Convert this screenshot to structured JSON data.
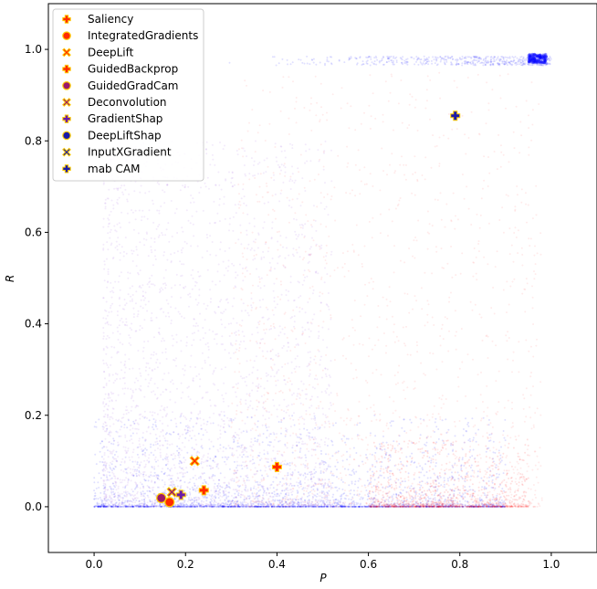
{
  "chart_data": {
    "type": "scatter",
    "title": "",
    "xlabel": "P",
    "ylabel": "R",
    "xlim": [
      -0.1,
      1.1
    ],
    "ylim": [
      -0.1,
      1.1
    ],
    "xticks": [
      0.0,
      0.2,
      0.4,
      0.6,
      0.8,
      1.0
    ],
    "xtick_labels": [
      "0.0",
      "0.2",
      "0.4",
      "0.6",
      "0.8",
      "1.0"
    ],
    "yticks": [
      0.0,
      0.2,
      0.4,
      0.6,
      0.8,
      1.0
    ],
    "ytick_labels": [
      "0.0",
      "0.2",
      "0.4",
      "0.6",
      "0.8",
      "1.0"
    ],
    "grid": false,
    "legend_position": "upper-left",
    "colors": {
      "blue_cloud": "#0000ff",
      "red_cloud": "#ff0000",
      "purple_cloud": "#7a1fd0",
      "legend_fill_red": "#ff2a00",
      "legend_fill_blue": "#1a1aa8",
      "legend_edge_yellow": "#ffcc00",
      "legend_edge_red": "#ff0000"
    },
    "series": [
      {
        "name": "Saliency",
        "marker": "plus",
        "fill": "#ff2a00",
        "edge": "#ffcc00",
        "x": 0.4,
        "y": 0.087
      },
      {
        "name": "IntegratedGradients",
        "marker": "circle",
        "fill": "#ff2a00",
        "edge": "#ffcc00",
        "x": 0.165,
        "y": 0.01
      },
      {
        "name": "DeepLift",
        "marker": "x",
        "fill": "#ff2a00",
        "edge": "#ffcc00",
        "x": 0.22,
        "y": 0.1
      },
      {
        "name": "GuidedBackprop",
        "marker": "plus",
        "fill": "#ff2a00",
        "edge": "#ffcc00",
        "x": 0.24,
        "y": 0.036
      },
      {
        "name": "GuidedGradCam",
        "marker": "circle",
        "fill": "#9a1a6a",
        "edge": "#ffcc00",
        "x": 0.147,
        "y": 0.019
      },
      {
        "name": "Deconvolution",
        "marker": "x",
        "fill": "#9a1a6a",
        "edge": "#ffcc00",
        "x": 0.17,
        "y": 0.032
      },
      {
        "name": "GradientShap",
        "marker": "plus",
        "fill": "#6a1aa8",
        "edge": "#ffcc00",
        "x": 0.19,
        "y": 0.026
      },
      {
        "name": "DeepLiftShap",
        "marker": "circle",
        "fill": "#1a1aa8",
        "edge": "#ffcc00",
        "x": null,
        "y": null
      },
      {
        "name": "InputXGradient",
        "marker": "x",
        "fill": "#1a1aa8",
        "edge": "#ffcc00",
        "x": null,
        "y": null
      },
      {
        "name": "mab CAM",
        "marker": "plus",
        "fill": "#1a1aa8",
        "edge": "#ffcc00",
        "x": 0.79,
        "y": 0.855
      }
    ]
  }
}
